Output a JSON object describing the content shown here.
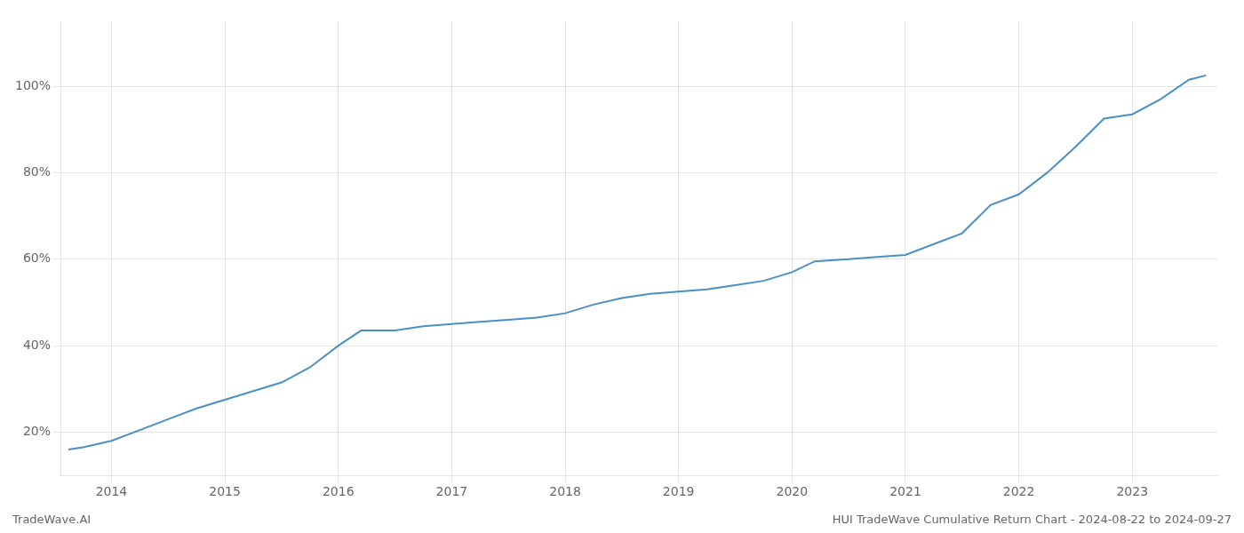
{
  "chart_data": {
    "type": "line",
    "title": "HUI TradeWave Cumulative Return Chart - 2024-08-22 to 2024-09-27",
    "annotations": [
      "TradeWave.AI"
    ],
    "x": [
      2013.62,
      2013.75,
      2014.0,
      2014.25,
      2014.5,
      2014.75,
      2015.0,
      2015.25,
      2015.5,
      2015.75,
      2016.0,
      2016.2,
      2016.5,
      2016.75,
      2017.0,
      2017.25,
      2017.5,
      2017.75,
      2018.0,
      2018.25,
      2018.5,
      2018.75,
      2019.0,
      2019.25,
      2019.5,
      2019.75,
      2020.0,
      2020.2,
      2020.5,
      2020.75,
      2021.0,
      2021.25,
      2021.5,
      2021.75,
      2022.0,
      2022.25,
      2022.5,
      2022.75,
      2023.0,
      2023.25,
      2023.5,
      2023.65
    ],
    "values": [
      16.0,
      16.5,
      18.0,
      20.5,
      23.0,
      25.5,
      27.5,
      29.5,
      31.5,
      35.0,
      40.0,
      43.5,
      43.5,
      44.5,
      45.0,
      45.5,
      46.0,
      46.5,
      47.5,
      49.5,
      51.0,
      52.0,
      52.5,
      53.0,
      54.0,
      55.0,
      57.0,
      59.5,
      60.0,
      60.5,
      61.0,
      63.5,
      66.0,
      72.5,
      75.0,
      80.0,
      86.0,
      92.5,
      93.5,
      97.0,
      101.5,
      102.5
    ],
    "color": "#4a90c4",
    "xlim": [
      2013.55,
      2023.75
    ],
    "xticks": [
      2014,
      2015,
      2016,
      2017,
      2018,
      2019,
      2020,
      2021,
      2022,
      2023
    ],
    "ylim": [
      10,
      115
    ],
    "yticks": [
      {
        "value": 20,
        "label": "20%"
      },
      {
        "value": 40,
        "label": "40%"
      },
      {
        "value": 60,
        "label": "60%"
      },
      {
        "value": 80,
        "label": "80%"
      },
      {
        "value": 100,
        "label": "100%"
      }
    ],
    "grid": true
  }
}
